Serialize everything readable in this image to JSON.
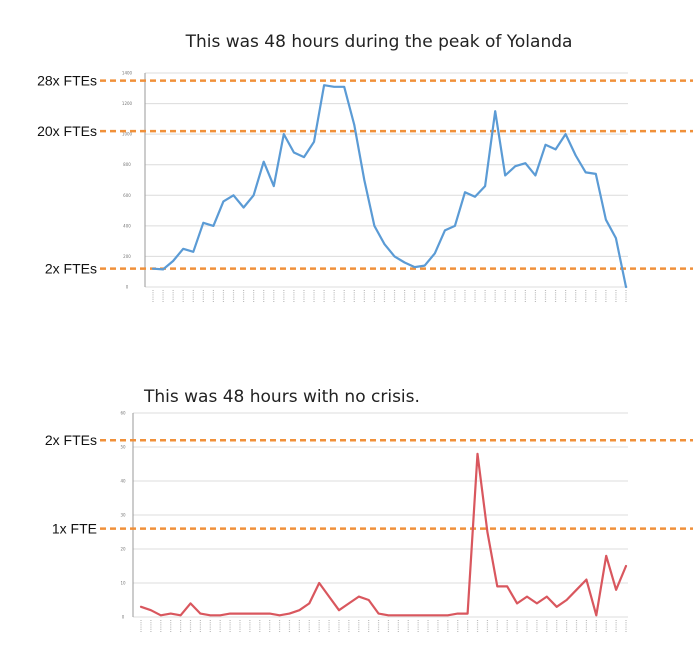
{
  "colors": {
    "reference_line": "#f0903a",
    "top_series": "#5b9bd5",
    "bottom_series": "#d9575e",
    "grid": "#dcdcdc"
  },
  "chart_data": [
    {
      "type": "line",
      "title": "This was 48 hours during the peak of Yolanda",
      "xlabel": "",
      "ylabel": "",
      "grid": true,
      "ylim": [
        0,
        1400
      ],
      "yticks": [
        0,
        200,
        400,
        600,
        800,
        1000,
        1200,
        1400
      ],
      "reference_lines": [
        {
          "label": "28x FTEs",
          "value": 1350
        },
        {
          "label": "20x FTEs",
          "value": 1020
        },
        {
          "label": "2x FTEs",
          "value": 120
        }
      ],
      "series": [
        {
          "values": [
            120,
            115,
            170,
            250,
            230,
            420,
            400,
            560,
            600,
            520,
            600,
            820,
            660,
            1000,
            880,
            850,
            950,
            1320,
            1310,
            1310,
            1060,
            700,
            400,
            280,
            200,
            160,
            130,
            140,
            220,
            370,
            400,
            620,
            590,
            660,
            1150,
            730,
            790,
            810,
            730,
            930,
            900,
            1000,
            860,
            750,
            740,
            440,
            320,
            0
          ]
        }
      ]
    },
    {
      "type": "line",
      "title": "This was 48 hours with no crisis.",
      "xlabel": "",
      "ylabel": "",
      "grid": true,
      "ylim": [
        0,
        60
      ],
      "yticks": [
        0,
        10,
        20,
        30,
        40,
        50,
        60
      ],
      "reference_lines": [
        {
          "label": "2x FTEs",
          "value": 52
        },
        {
          "label": "1x FTE",
          "value": 26
        }
      ],
      "series": [
        {
          "values": [
            3,
            2,
            0.5,
            1,
            0.5,
            4,
            1,
            0.5,
            0.5,
            1,
            1,
            1,
            1,
            1,
            0.5,
            1,
            2,
            4,
            10,
            6,
            2,
            4,
            6,
            5,
            1,
            0.5,
            0.5,
            0.5,
            0.5,
            0.5,
            0.5,
            0.5,
            1,
            1,
            48,
            25,
            9,
            9,
            4,
            6,
            4,
            6,
            3,
            5,
            8,
            11,
            0.5,
            18,
            8,
            15
          ]
        }
      ]
    }
  ]
}
